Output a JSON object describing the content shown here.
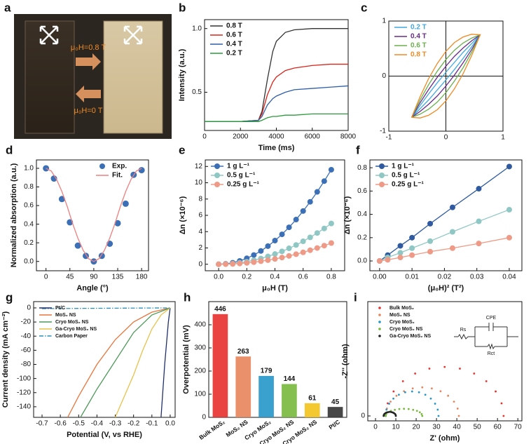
{
  "photo": {
    "panel_label": "a",
    "annotations": [
      "μ₀H=0.8 T",
      "μ₀H=0 T"
    ]
  },
  "chart_data": [
    {
      "type": "line",
      "panel_label": "b",
      "xlabel": "Time (ms)",
      "ylabel": "Intensity (a.u.)",
      "xlim": [
        0,
        8000
      ],
      "ylim": [
        0.2,
        1.07
      ],
      "xticks": [
        0,
        2000,
        4000,
        6000,
        8000
      ],
      "yticks": [
        0.5,
        {
          "value": 1,
          "label": "1.0"
        }
      ],
      "legend": "upper left",
      "x": [
        0,
        1000,
        2000,
        3000,
        3200,
        3500,
        3800,
        4000,
        4500,
        5000,
        6000,
        7000,
        8000
      ],
      "series": [
        {
          "name": "0.8 T",
          "color": "#333333",
          "style": "line",
          "values": [
            0.27,
            0.27,
            0.27,
            0.28,
            0.35,
            0.6,
            0.82,
            0.9,
            0.97,
            0.99,
            1.0,
            1.0,
            1.0
          ]
        },
        {
          "name": "0.6 T",
          "color": "#d9251c",
          "style": "line",
          "values": [
            0.27,
            0.27,
            0.27,
            0.28,
            0.33,
            0.48,
            0.58,
            0.62,
            0.67,
            0.69,
            0.71,
            0.72,
            0.72
          ]
        },
        {
          "name": "0.4 T",
          "color": "#2e5ea8",
          "style": "line",
          "values": [
            0.27,
            0.27,
            0.27,
            0.28,
            0.31,
            0.4,
            0.45,
            0.47,
            0.5,
            0.52,
            0.53,
            0.54,
            0.55
          ]
        },
        {
          "name": "0.2 T",
          "color": "#2a9a3c",
          "style": "line",
          "values": [
            0.27,
            0.27,
            0.27,
            0.27,
            0.28,
            0.3,
            0.31,
            0.31,
            0.32,
            0.32,
            0.33,
            0.33,
            0.33
          ]
        }
      ]
    },
    {
      "type": "line",
      "panel_label": "c",
      "axes_at_zero": true,
      "xlim": [
        -1,
        1
      ],
      "ylim": [
        -1,
        1
      ],
      "xticks": [
        -1,
        0,
        1
      ],
      "yticks": [
        -1,
        0,
        1
      ],
      "legend": "upper left",
      "x": [
        -0.6,
        -0.45,
        -0.3,
        -0.15,
        0,
        0.15,
        0.3,
        0.45,
        0.6,
        0.45,
        0.3,
        0.15,
        0,
        -0.15,
        -0.3,
        -0.45,
        -0.6
      ],
      "series": [
        {
          "name": "0.2 T",
          "color": "#3fa9e0",
          "style": "line",
          "values": [
            -0.75,
            -0.53,
            -0.32,
            -0.12,
            0.07,
            0.25,
            0.43,
            0.59,
            0.75,
            0.53,
            0.32,
            0.12,
            -0.07,
            -0.25,
            -0.43,
            -0.59,
            -0.75
          ]
        },
        {
          "name": "0.4 T",
          "color": "#6a2a8c",
          "style": "line",
          "values": [
            -0.75,
            -0.48,
            -0.24,
            -0.02,
            0.18,
            0.36,
            0.51,
            0.64,
            0.75,
            0.48,
            0.24,
            0.02,
            -0.18,
            -0.36,
            -0.51,
            -0.64,
            -0.75
          ]
        },
        {
          "name": "0.6 T",
          "color": "#6ab04c",
          "style": "line",
          "values": [
            -0.75,
            -0.43,
            -0.15,
            0.09,
            0.3,
            0.47,
            0.6,
            0.69,
            0.75,
            0.43,
            0.15,
            -0.09,
            -0.3,
            -0.47,
            -0.6,
            -0.69,
            -0.75
          ]
        },
        {
          "name": "0.8 T",
          "color": "#f08a24",
          "style": "line",
          "values": [
            -0.75,
            -0.37,
            -0.04,
            0.23,
            0.45,
            0.61,
            0.71,
            0.76,
            0.75,
            0.37,
            0.04,
            -0.23,
            -0.45,
            -0.61,
            -0.71,
            -0.76,
            -0.75
          ]
        }
      ]
    },
    {
      "type": "line",
      "panel_label": "d",
      "xlabel": "Angle (°)",
      "ylabel": "Normalized absorption (a.u.)",
      "xlim": [
        -18,
        193
      ],
      "ylim": [
        -0.1,
        1.09
      ],
      "xticks": [
        0,
        45,
        90,
        135,
        180
      ],
      "yticks": [
        {
          "value": 0,
          "label": "0.0"
        },
        0.2,
        0.4,
        0.6,
        0.8,
        {
          "value": 1,
          "label": "1.0"
        }
      ],
      "legend": "upper center",
      "series": [
        {
          "name": "Exp.",
          "color": "#3b6fb6",
          "style": "markers",
          "x": [
            0,
            15,
            30,
            45,
            60,
            75,
            90,
            105,
            120,
            135,
            150,
            165,
            180
          ],
          "values": [
            1.0,
            0.89,
            0.67,
            0.42,
            0.17,
            0.06,
            0.0,
            0.06,
            0.19,
            0.41,
            0.62,
            0.93,
            0.98
          ]
        },
        {
          "name": "Fit.",
          "color": "#ef7f7f",
          "style": "line",
          "x": [
            0,
            10,
            20,
            30,
            40,
            50,
            60,
            70,
            80,
            90,
            100,
            110,
            120,
            130,
            140,
            150,
            160,
            170,
            180
          ],
          "values": [
            1,
            0.97,
            0.88,
            0.75,
            0.59,
            0.41,
            0.25,
            0.12,
            0.03,
            0,
            0.03,
            0.12,
            0.25,
            0.41,
            0.59,
            0.75,
            0.88,
            0.97,
            1
          ]
        }
      ]
    },
    {
      "type": "line",
      "panel_label": "e",
      "xlabel": "μ₀H (T)",
      "ylabel": "Δn (×10⁻⁶)",
      "xlim": [
        -0.095,
        0.895
      ],
      "ylim": [
        -0.8,
        12.8
      ],
      "xticks": [
        {
          "value": 0,
          "label": "0.0"
        },
        0.2,
        0.4,
        0.6,
        0.8
      ],
      "yticks": [
        0,
        2,
        4,
        6,
        8,
        10,
        12
      ],
      "legend": "upper left",
      "x": [
        0,
        0.05,
        0.1,
        0.15,
        0.2,
        0.25,
        0.3,
        0.35,
        0.4,
        0.45,
        0.5,
        0.55,
        0.6,
        0.65,
        0.7,
        0.75,
        0.8
      ],
      "series": [
        {
          "name": "1 g L⁻¹",
          "color": "#3b6fb6",
          "style": "line+markers",
          "values": [
            0,
            0.05,
            0.18,
            0.41,
            0.73,
            1.13,
            1.63,
            2.22,
            2.9,
            3.67,
            4.53,
            5.48,
            6.53,
            7.66,
            8.88,
            10.2,
            11.6
          ]
        },
        {
          "name": "0.5 g L⁻¹",
          "color": "#8fc7c4",
          "style": "line+markers",
          "values": [
            0,
            0.02,
            0.08,
            0.18,
            0.31,
            0.49,
            0.7,
            0.96,
            1.25,
            1.58,
            1.95,
            2.36,
            2.81,
            3.3,
            3.83,
            4.39,
            5.0
          ]
        },
        {
          "name": "0.25 g L⁻¹",
          "color": "#ef9a86",
          "style": "line+markers",
          "values": [
            0,
            0.01,
            0.04,
            0.09,
            0.16,
            0.25,
            0.37,
            0.5,
            0.65,
            0.82,
            1.02,
            1.23,
            1.46,
            1.72,
            1.99,
            2.28,
            2.6
          ]
        }
      ]
    },
    {
      "type": "line",
      "panel_label": "f",
      "xlabel": "(μ₀H)² (T²)",
      "ylabel": "Δn (×10⁻⁶)",
      "xlim": [
        -0.003,
        0.0439
      ],
      "ylim": [
        -0.084,
        0.867
      ],
      "xticks": [
        {
          "value": 0,
          "label": "0.00"
        },
        {
          "value": 0.01,
          "label": "0.01"
        },
        {
          "value": 0.02,
          "label": "0.02"
        },
        {
          "value": 0.03,
          "label": "0.03"
        },
        {
          "value": 0.04,
          "label": "0.04"
        }
      ],
      "yticks": [
        {
          "value": 0,
          "label": "0.0"
        },
        0.2,
        0.4,
        0.6,
        0.8
      ],
      "legend": "upper left",
      "x": [
        0,
        0.0025,
        0.0064,
        0.01,
        0.0156,
        0.0225,
        0.0306,
        0.04
      ],
      "series": [
        {
          "name": "1 g L⁻¹",
          "color": "#2f5aa0",
          "style": "line+markers",
          "values": [
            0,
            0.05,
            0.13,
            0.2,
            0.32,
            0.46,
            0.62,
            0.81
          ]
        },
        {
          "name": "0.5 g L⁻¹",
          "color": "#8fc7c4",
          "style": "line+markers",
          "values": [
            0,
            0.03,
            0.07,
            0.11,
            0.17,
            0.25,
            0.34,
            0.44
          ]
        },
        {
          "name": "0.25 g L⁻¹",
          "color": "#ef9a86",
          "style": "line+markers",
          "values": [
            0,
            0.01,
            0.03,
            0.05,
            0.08,
            0.11,
            0.15,
            0.2
          ]
        }
      ]
    },
    {
      "type": "line",
      "panel_label": "g",
      "xlabel": "Potential (V, vs RHE)",
      "ylabel": "Current density (mA cm⁻²)",
      "xlim": [
        -0.746,
        0.027
      ],
      "ylim": [
        -155,
        8.9
      ],
      "xticks": [
        -0.7,
        -0.6,
        -0.5,
        -0.4,
        -0.3,
        -0.2,
        -0.1,
        {
          "value": 0,
          "label": "0.0"
        }
      ],
      "yticks": [
        0,
        -20,
        -40,
        -60,
        -80,
        -100,
        -120,
        -140
      ],
      "legend": "upper left",
      "series": [
        {
          "name": "Pt/C",
          "color": "#1f2f6b",
          "style": "line",
          "x": [
            -0.05,
            -0.03,
            -0.01,
            0
          ],
          "values": [
            -155,
            -80,
            -20,
            0
          ]
        },
        {
          "name": "MoS₂ NS",
          "color": "#e8743c",
          "style": "line",
          "x": [
            -0.56,
            -0.5,
            -0.4,
            -0.3,
            -0.2,
            -0.1,
            0
          ],
          "values": [
            -155,
            -125,
            -80,
            -45,
            -20,
            -6,
            0
          ]
        },
        {
          "name": "Cryo MoS₂ NS",
          "color": "#4f9a5a",
          "style": "line",
          "x": [
            -0.49,
            -0.4,
            -0.3,
            -0.2,
            -0.1,
            0
          ],
          "values": [
            -155,
            -115,
            -75,
            -35,
            -10,
            0
          ]
        },
        {
          "name": "Ga-Cryo MoS₂ NS",
          "color": "#e8c14a",
          "style": "line",
          "x": [
            -0.3,
            -0.25,
            -0.2,
            -0.15,
            -0.1,
            -0.05,
            0
          ],
          "values": [
            -155,
            -125,
            -95,
            -60,
            -30,
            -10,
            0
          ]
        },
        {
          "name": "Carbon Paper",
          "color": "#2a8fb8",
          "style": "line",
          "dash": "dashdot",
          "x": [
            -0.7,
            0
          ],
          "values": [
            -1,
            0
          ]
        }
      ]
    },
    {
      "type": "bar",
      "panel_label": "h",
      "ylabel": "Overpotential (mV)",
      "ylim": [
        0,
        500
      ],
      "yticks": [
        0,
        100,
        200,
        300,
        400
      ],
      "categories": [
        "Bulk MoS₂",
        "MoS₂ NS",
        "Cryo MoS₂",
        "Cryo MoS₂ NS",
        "Ga-Cryo MoS₂ NS",
        "Pt/C"
      ],
      "values": [
        446,
        263,
        179,
        144,
        61,
        45
      ],
      "colors": [
        "#e8302e",
        "#e8845a",
        "#2596c9",
        "#78b83c",
        "#f2c21a",
        "#333333"
      ]
    },
    {
      "type": "scatter",
      "panel_label": "i",
      "xlabel": "Z' (ohm)",
      "ylabel": "-Z'' (ohm)",
      "xlim": [
        -3.8,
        72
      ],
      "ylim": [
        -2.4,
        56
      ],
      "xticks": [
        0,
        10,
        20,
        30,
        40,
        50,
        60,
        70
      ],
      "yticks": [
        0
      ],
      "legend": "upper left",
      "circuit_labels": [
        "Rs",
        "CPE",
        "Rct"
      ],
      "series": [
        {
          "name": "Bulk MoS₂",
          "color": "#e8302e",
          "x": [
            63,
            62,
            59.1,
            54.5,
            48.5,
            41.5,
            34,
            26.5,
            19.5,
            13.5,
            8.9,
            6,
            5
          ],
          "values": [
            0,
            6.2,
            12,
            17,
            20.8,
            23.2,
            24,
            23.2,
            20.8,
            17,
            12,
            6.2,
            0
          ]
        },
        {
          "name": "MoS₂ NS",
          "color": "#e8845a",
          "x": [
            41,
            40.4,
            38.6,
            35.7,
            32,
            27.7,
            23,
            18.3,
            14,
            10.3,
            7.4,
            5.6,
            5
          ],
          "values": [
            0,
            3.6,
            7,
            9.9,
            12.1,
            13.5,
            14,
            13.5,
            12.1,
            9.9,
            7,
            3.6,
            0
          ]
        },
        {
          "name": "Cryo MoS₂",
          "color": "#2596c9",
          "x": [
            31,
            30.6,
            29.3,
            27.2,
            24.5,
            21.4,
            18,
            14.6,
            11.5,
            8.8,
            6.7,
            5.4,
            5
          ],
          "values": [
            0,
            3.1,
            6,
            8.5,
            10.4,
            11.6,
            12,
            11.6,
            10.4,
            8.5,
            6,
            3.1,
            0
          ]
        },
        {
          "name": "Cryo MoS₂ NS",
          "color": "#78b83c",
          "x": [
            23,
            22.7,
            21.8,
            20.4,
            18.5,
            16.3,
            14,
            11.7,
            9.5,
            7.6,
            6.2,
            5.3,
            5
          ],
          "values": [
            0,
            0.9,
            1.8,
            2.5,
            3,
            3.4,
            3.5,
            3.4,
            3,
            2.5,
            1.8,
            0.9,
            0
          ]
        },
        {
          "name": "Ga-Cryo MoS₂ NS",
          "color": "#222222",
          "x": [
            10,
            9.9,
            9.6,
            9.1,
            8.5,
            7.8,
            7,
            6.2,
            5.5,
            4.9,
            4.4,
            4.1,
            4
          ],
          "values": [
            0,
            0.5,
            1,
            1.4,
            1.7,
            1.9,
            2,
            1.9,
            1.7,
            1.4,
            1,
            0.5,
            0
          ]
        }
      ]
    }
  ]
}
